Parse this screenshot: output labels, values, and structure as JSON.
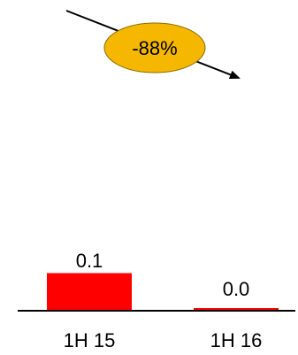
{
  "chart_data": {
    "type": "bar",
    "categories": [
      "1H 15",
      "1H 16"
    ],
    "values": [
      0.1,
      0.0
    ],
    "data_labels": [
      "0.1",
      "0.0"
    ],
    "ylim": [
      0,
      0.12
    ],
    "grid": false,
    "legend": "none",
    "bar_color": "#ff0000",
    "annotation": {
      "text": "-88%",
      "fill_color": "#f5b700",
      "stroke_color": "#8a6d00",
      "arrow": "downward-right"
    }
  }
}
